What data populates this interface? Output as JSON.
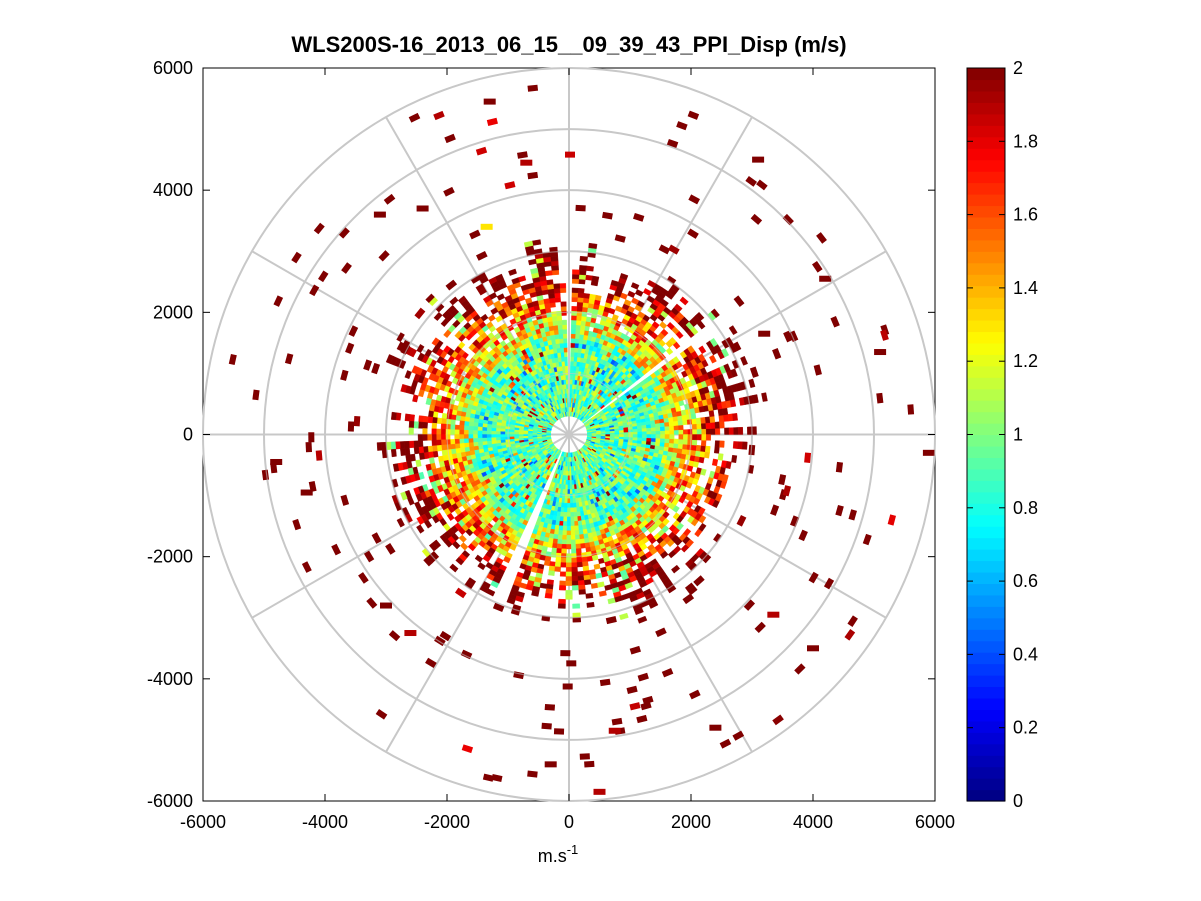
{
  "chart_data": {
    "type": "heatmap",
    "subtype": "polar-ppi",
    "title": "WLS200S-16_2013_06_15__09_39_43_PPI_Disp (m/s)",
    "xlabel": "m.s",
    "xlabel_sup": "-1",
    "ylabel": "",
    "xlim": [
      -6000,
      6000
    ],
    "ylim": [
      -6000,
      6000
    ],
    "x_ticks": [
      "-6000",
      "-4000",
      "-2000",
      "0",
      "2000",
      "4000",
      "6000"
    ],
    "y_ticks": [
      "6000",
      "4000",
      "2000",
      "0",
      "-2000",
      "-4000",
      "-6000"
    ],
    "grid_ring_radii": [
      1000,
      2000,
      3000,
      4000,
      5000,
      6000
    ],
    "grid_spoke_angles_deg": [
      0,
      30,
      60,
      90,
      120,
      150,
      180,
      210,
      240,
      270,
      300,
      330
    ],
    "colorbar": {
      "min": 0,
      "max": 2,
      "colormap": "jet",
      "tick_labels": [
        "2",
        "1.8",
        "1.6",
        "1.4",
        "1.2",
        "1",
        "0.8",
        "0.6",
        "0.4",
        "0.2",
        "0"
      ]
    },
    "data_description_values": {
      "inner_region_radius_m": 1700,
      "inner_typical_dispersion_mps": [
        0.7,
        1.2
      ],
      "outer_region_radius_m": [
        1700,
        3000
      ],
      "outer_typical_dispersion_mps": [
        1.6,
        2.0
      ],
      "sparse_outliers_radius_m": [
        3000,
        6000
      ],
      "sparse_outliers_dispersion_mps": 2.0
    },
    "sample_outlier_points": [
      {
        "x": -1300,
        "y": 5450,
        "v": 2.0
      },
      {
        "x": -700,
        "y": 4450,
        "v": 1.9
      },
      {
        "x": -1350,
        "y": 3400,
        "v": 1.3
      },
      {
        "x": 3100,
        "y": 4500,
        "v": 2.0
      },
      {
        "x": -3100,
        "y": 3600,
        "v": 2.0
      },
      {
        "x": -2400,
        "y": 3700,
        "v": 2.0
      },
      {
        "x": 4200,
        "y": 2550,
        "v": 2.0
      },
      {
        "x": 5100,
        "y": 1350,
        "v": 2.0
      },
      {
        "x": 5900,
        "y": -300,
        "v": 2.0
      },
      {
        "x": -4800,
        "y": -450,
        "v": 2.0
      },
      {
        "x": -4300,
        "y": -950,
        "v": 2.0
      },
      {
        "x": -3000,
        "y": -2800,
        "v": 2.0
      },
      {
        "x": -2600,
        "y": -3250,
        "v": 1.9
      },
      {
        "x": -300,
        "y": -5400,
        "v": 2.0
      },
      {
        "x": 500,
        "y": -5850,
        "v": 1.9
      },
      {
        "x": 750,
        "y": -4850,
        "v": 1.9
      },
      {
        "x": 2400,
        "y": -4800,
        "v": 2.0
      },
      {
        "x": 3350,
        "y": -2950,
        "v": 1.9
      },
      {
        "x": 4000,
        "y": -3500,
        "v": 2.0
      },
      {
        "x": 3200,
        "y": 1650,
        "v": 2.0
      }
    ]
  }
}
